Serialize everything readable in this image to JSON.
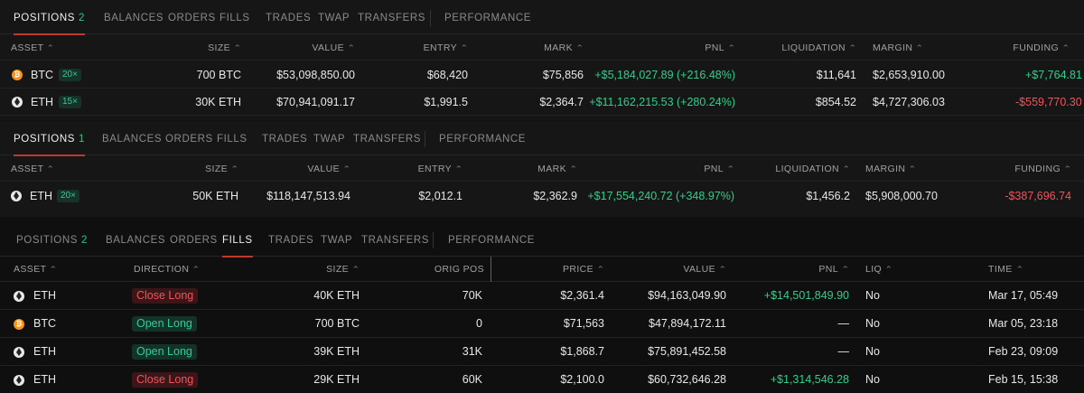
{
  "panel1": {
    "tabs": [
      {
        "label": "POSITIONS",
        "count": "2"
      },
      {
        "label": "BALANCES"
      },
      {
        "label": "ORDERS"
      },
      {
        "label": "FILLS"
      },
      {
        "label": "TRADES"
      },
      {
        "label": "TWAP"
      },
      {
        "label": "TRANSFERS"
      },
      {
        "label": "PERFORMANCE"
      }
    ],
    "columns": [
      "ASSET",
      "SIZE",
      "VALUE",
      "ENTRY",
      "MARK",
      "PNL",
      "LIQUIDATION",
      "MARGIN",
      "FUNDING"
    ],
    "rows": [
      {
        "asset": "BTC",
        "icon": "btc-icon",
        "leverage": "20×",
        "size": "700 BTC",
        "value": "$53,098,850.00",
        "entry": "$68,420",
        "mark": "$75,856",
        "pnl": "+$5,184,027.89 (+216.48%)",
        "liquidation": "$11,641",
        "margin": "$2,653,910.00",
        "funding": "+$7,764.81"
      },
      {
        "asset": "ETH",
        "icon": "eth-icon",
        "leverage": "15×",
        "size": "30K ETH",
        "value": "$70,941,091.17",
        "entry": "$1,991.5",
        "mark": "$2,364.7",
        "pnl": "+$11,162,215.53 (+280.24%)",
        "liquidation": "$854.52",
        "margin": "$4,727,306.03",
        "funding": "-$559,770.30"
      }
    ]
  },
  "panel2": {
    "tabs": [
      {
        "label": "POSITIONS",
        "count": "1"
      },
      {
        "label": "BALANCES"
      },
      {
        "label": "ORDERS"
      },
      {
        "label": "FILLS"
      },
      {
        "label": "TRADES"
      },
      {
        "label": "TWAP"
      },
      {
        "label": "TRANSFERS"
      },
      {
        "label": "PERFORMANCE"
      }
    ],
    "columns": [
      "ASSET",
      "SIZE",
      "VALUE",
      "ENTRY",
      "MARK",
      "PNL",
      "LIQUIDATION",
      "MARGIN",
      "FUNDING"
    ],
    "rows": [
      {
        "asset": "ETH",
        "icon": "eth-icon",
        "leverage": "20×",
        "size": "50K ETH",
        "value": "$118,147,513.94",
        "entry": "$2,012.1",
        "mark": "$2,362.9",
        "pnl": "+$17,554,240.72 (+348.97%)",
        "liquidation": "$1,456.2",
        "margin": "$5,908,000.70",
        "funding": "-$387,696.74"
      }
    ]
  },
  "panel3": {
    "tabs": [
      {
        "label": "POSITIONS",
        "count": "2"
      },
      {
        "label": "BALANCES"
      },
      {
        "label": "ORDERS"
      },
      {
        "label": "FILLS"
      },
      {
        "label": "TRADES"
      },
      {
        "label": "TWAP"
      },
      {
        "label": "TRANSFERS"
      },
      {
        "label": "PERFORMANCE"
      }
    ],
    "columns": [
      "ASSET",
      "DIRECTION",
      "SIZE",
      "ORIG POS",
      "PRICE",
      "VALUE",
      "PNL",
      "LIQ",
      "TIME"
    ],
    "rows": [
      {
        "asset": "ETH",
        "icon": "eth-icon",
        "direction": "Close Long",
        "size": "40K ETH",
        "orig_pos": "70K",
        "price": "$2,361.4",
        "value": "$94,163,049.90",
        "pnl": "+$14,501,849.90",
        "liq": "No",
        "time": "Mar 17, 05:49"
      },
      {
        "asset": "BTC",
        "icon": "btc-icon",
        "direction": "Open Long",
        "size": "700 BTC",
        "orig_pos": "0",
        "price": "$71,563",
        "value": "$47,894,172.11",
        "pnl": "—",
        "liq": "No",
        "time": "Mar 05, 23:18"
      },
      {
        "asset": "ETH",
        "icon": "eth-icon",
        "direction": "Open Long",
        "size": "39K ETH",
        "orig_pos": "31K",
        "price": "$1,868.7",
        "value": "$75,891,452.58",
        "pnl": "—",
        "liq": "No",
        "time": "Feb 23, 09:09"
      },
      {
        "asset": "ETH",
        "icon": "eth-icon",
        "direction": "Close Long",
        "size": "29K ETH",
        "orig_pos": "60K",
        "price": "$2,100.0",
        "value": "$60,732,646.28",
        "pnl": "+$1,314,546.28",
        "liq": "No",
        "time": "Feb 15, 15:38"
      }
    ]
  },
  "colors": {
    "positive": "#2fcf8f",
    "negative": "#f0545c",
    "tab_underline": "#c0392b"
  }
}
